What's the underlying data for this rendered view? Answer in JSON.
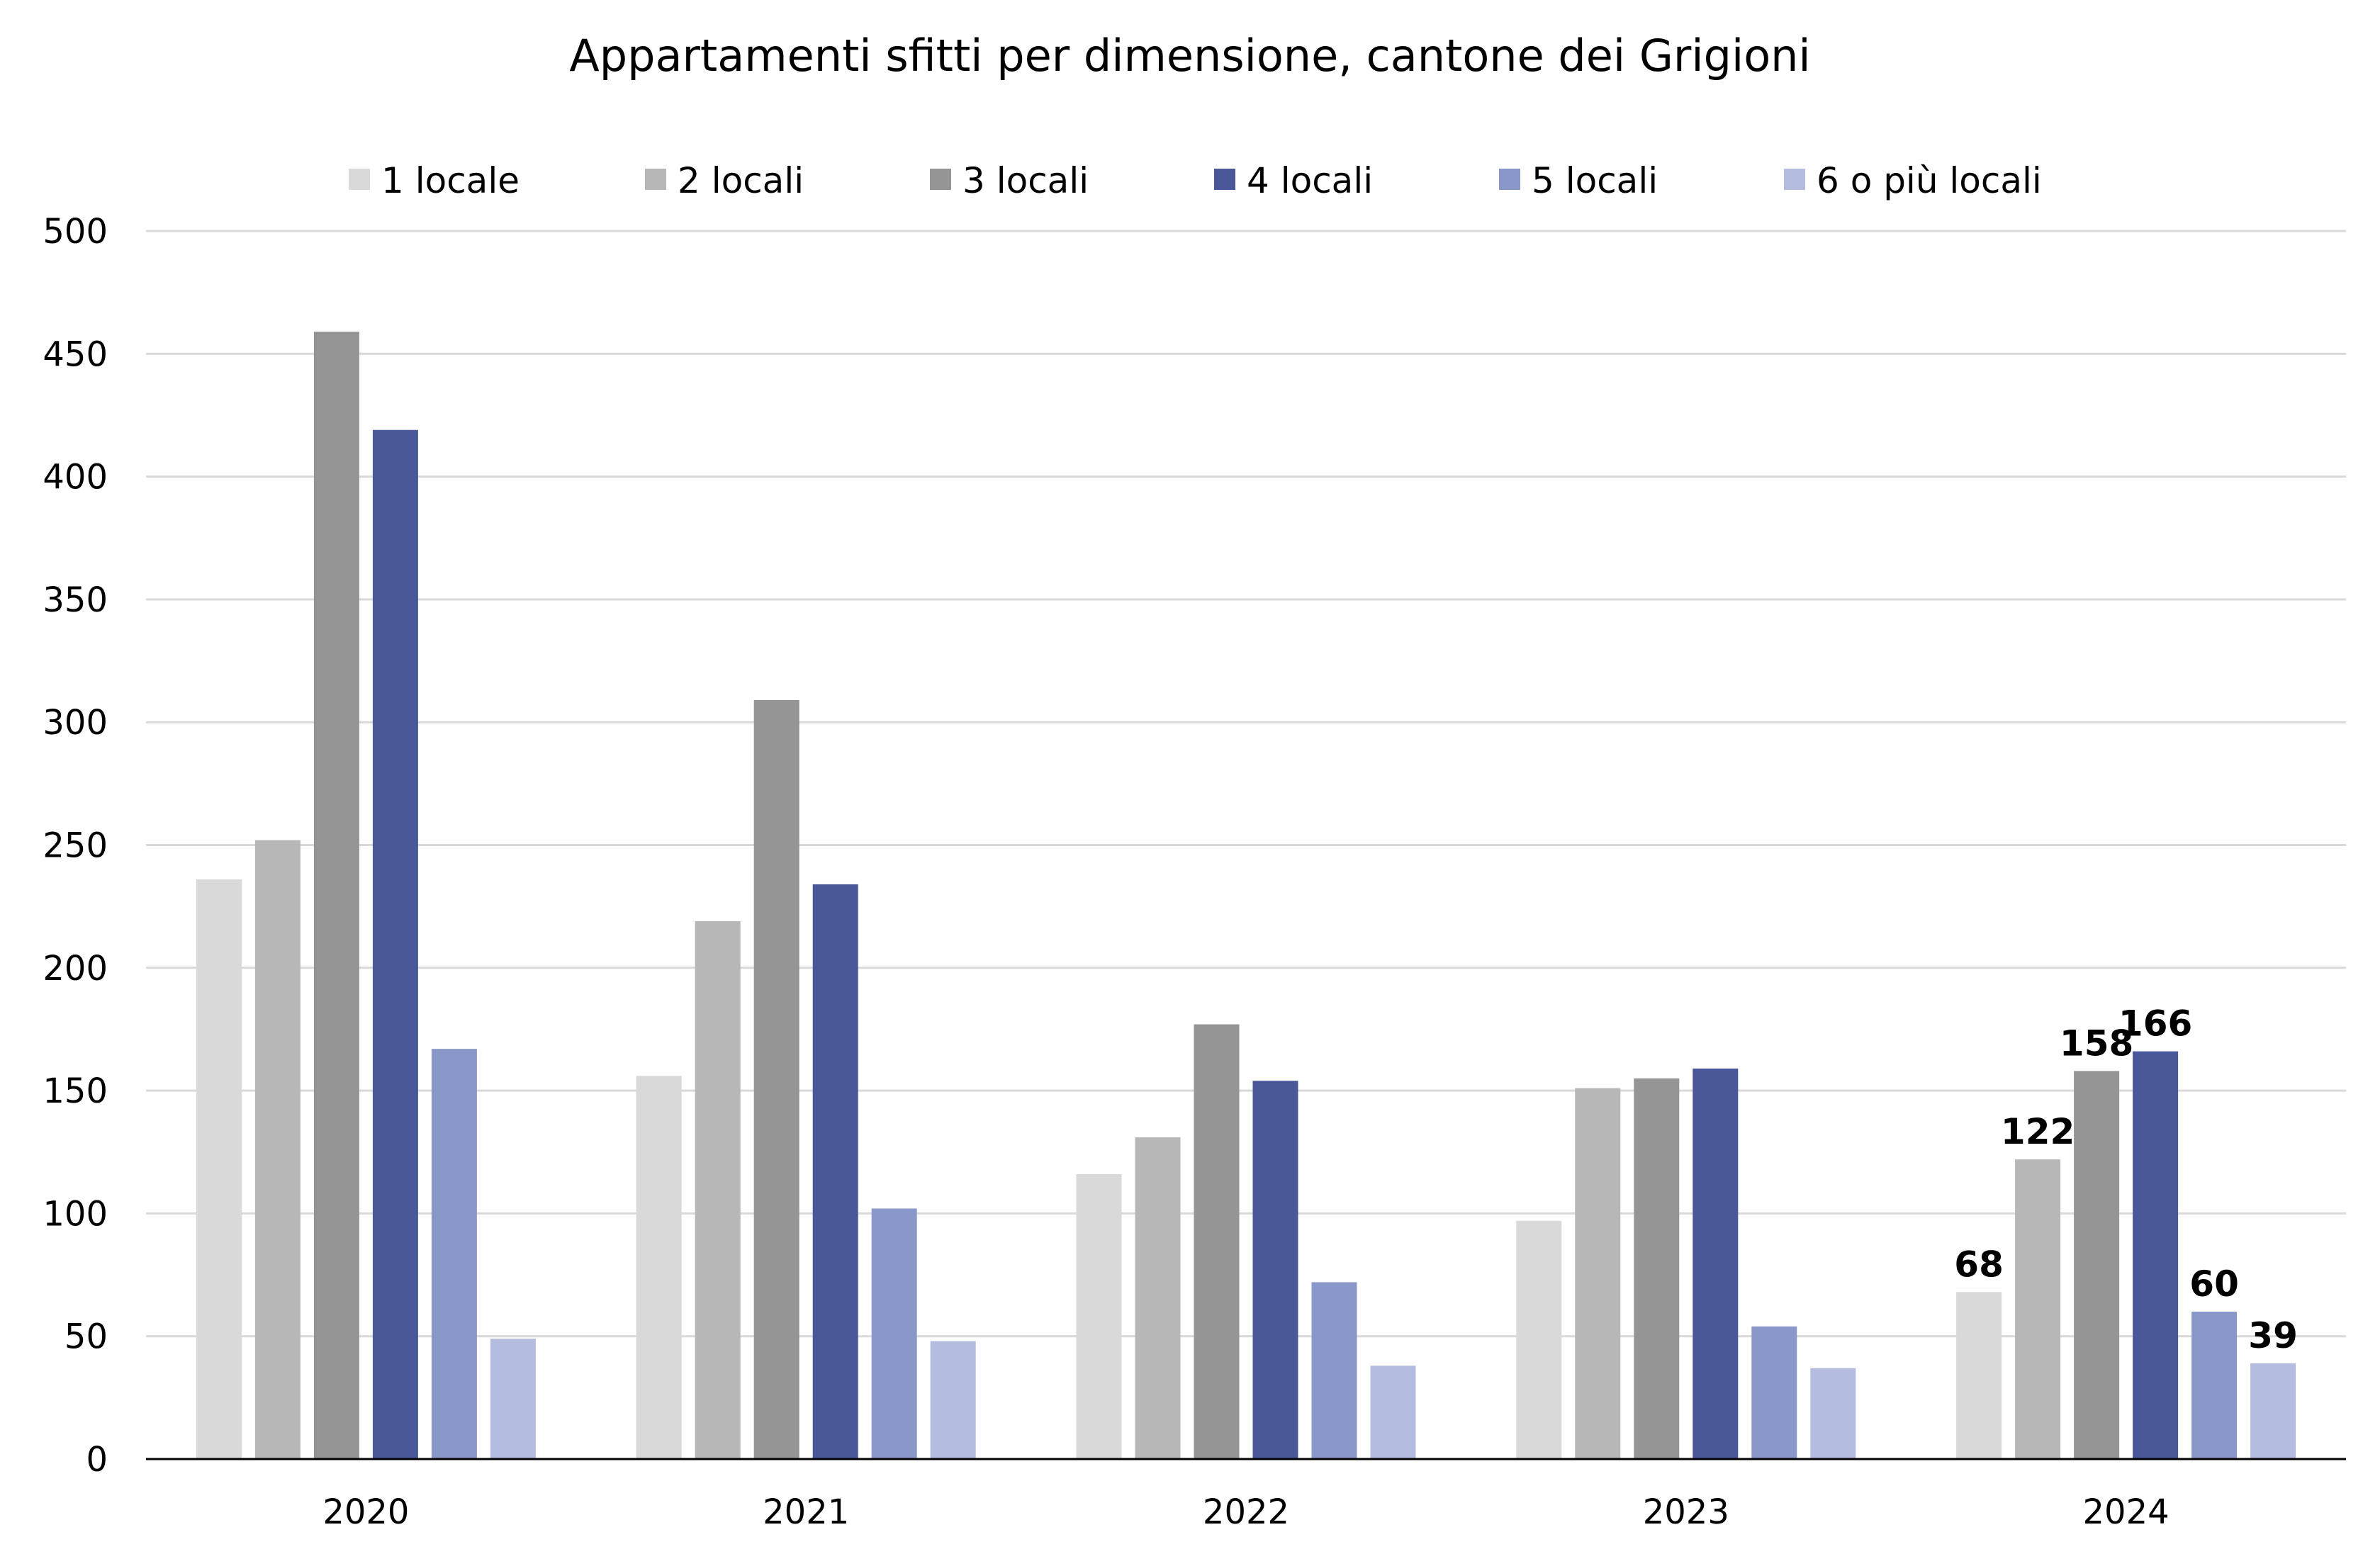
{
  "chart_data": {
    "type": "bar",
    "title": "Appartamenti sfitti per dimensione, cantone dei Grigioni",
    "xlabel": "",
    "ylabel": "",
    "ylim": [
      0,
      500
    ],
    "yticks": [
      0,
      50,
      100,
      150,
      200,
      250,
      300,
      350,
      400,
      450,
      500
    ],
    "grid": true,
    "legend_position": "top",
    "categories": [
      "2020",
      "2021",
      "2022",
      "2023",
      "2024"
    ],
    "series": [
      {
        "name": "1 locale",
        "color": "#d9d9d9",
        "values": [
          236,
          156,
          116,
          97,
          68
        ]
      },
      {
        "name": "2 locali",
        "color": "#b7b7b7",
        "values": [
          252,
          219,
          131,
          151,
          122
        ]
      },
      {
        "name": "3 locali",
        "color": "#959595",
        "values": [
          459,
          309,
          177,
          155,
          158
        ]
      },
      {
        "name": "4 locali",
        "color": "#4a5899",
        "values": [
          419,
          234,
          154,
          159,
          166
        ]
      },
      {
        "name": "5 locali",
        "color": "#8a97c9",
        "values": [
          167,
          102,
          72,
          54,
          60
        ]
      },
      {
        "name": "6 o più locali",
        "color": "#b4bde0",
        "values": [
          49,
          48,
          38,
          37,
          39
        ]
      }
    ],
    "data_labels": {
      "category": "2024",
      "values": [
        "68",
        "122",
        "158",
        "166",
        "60",
        "39"
      ]
    }
  }
}
